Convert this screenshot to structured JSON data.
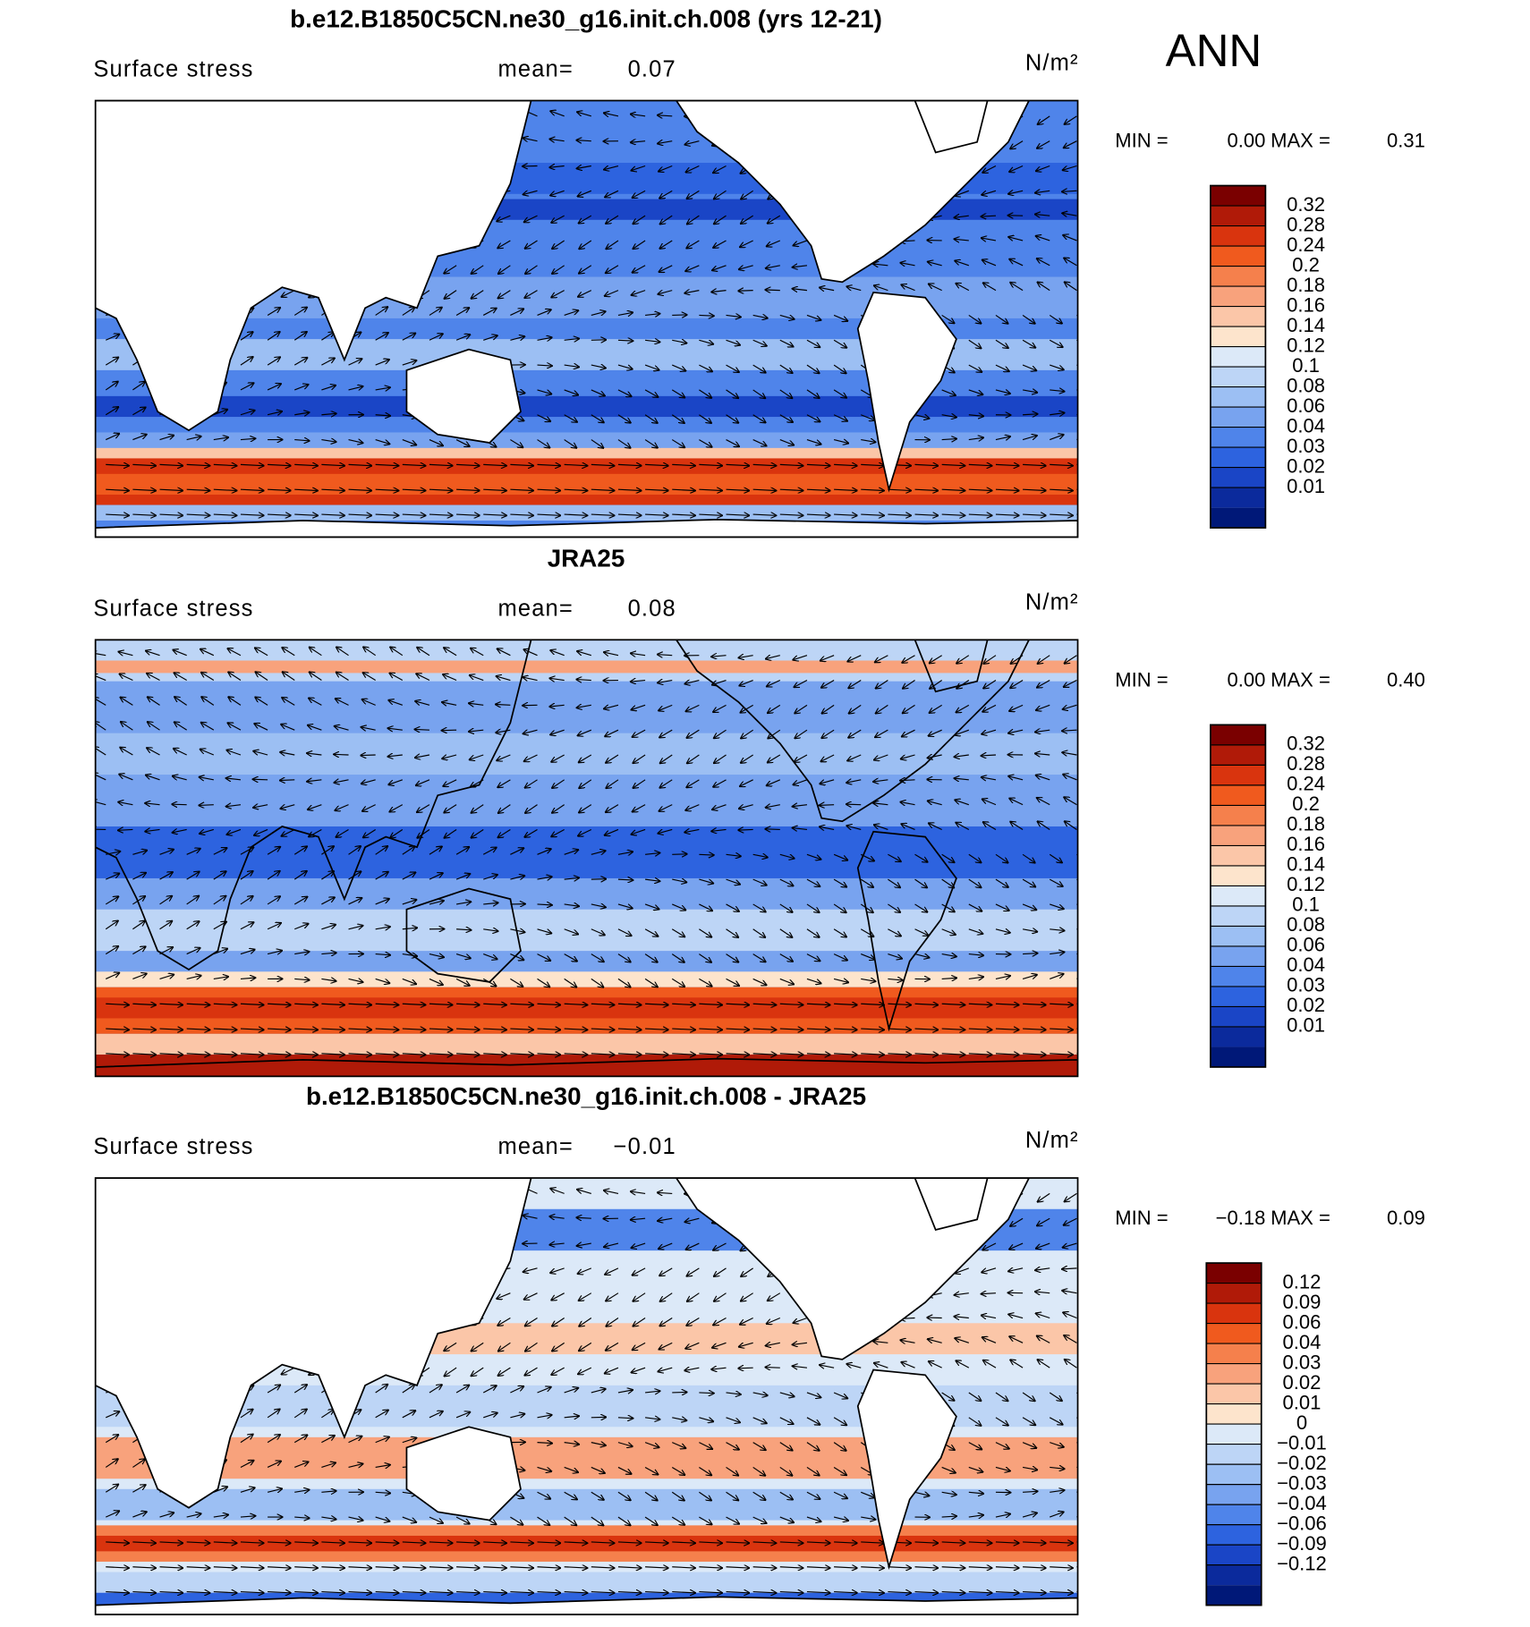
{
  "season": "ANN",
  "panels": [
    {
      "title": "b.e12.B1850C5CN.ne30_g16.init.ch.008 (yrs 12-21)",
      "field": "Surface stress",
      "mean_label": "mean=",
      "mean": "0.07",
      "units": "N/m²",
      "min_label": "MIN =",
      "min": "0.00",
      "max_label": "MAX =",
      "max": "0.31",
      "colorbar": {
        "levels": [
          0.32,
          0.28,
          0.24,
          0.2,
          0.18,
          0.16,
          0.14,
          0.12,
          0.1,
          0.08,
          0.06,
          0.04,
          0.03,
          0.02,
          0.01
        ],
        "colors": [
          "#7a0000",
          "#b01a08",
          "#d9340e",
          "#f05a1e",
          "#f5804c",
          "#f8a27c",
          "#fbc6a8",
          "#fde4cc",
          "#dce9f8",
          "#bdd5f6",
          "#9cbff3",
          "#78a3ef",
          "#4f84ea",
          "#2d63df",
          "#1a45c6",
          "#0b2a9c",
          "#001878"
        ]
      }
    },
    {
      "title": "JRA25",
      "field": "Surface stress",
      "mean_label": "mean=",
      "mean": "0.08",
      "units": "N/m²",
      "min_label": "MIN =",
      "min": "0.00",
      "max_label": "MAX =",
      "max": "0.40",
      "colorbar": {
        "levels": [
          0.32,
          0.28,
          0.24,
          0.2,
          0.18,
          0.16,
          0.14,
          0.12,
          0.1,
          0.08,
          0.06,
          0.04,
          0.03,
          0.02,
          0.01
        ],
        "colors": [
          "#7a0000",
          "#b01a08",
          "#d9340e",
          "#f05a1e",
          "#f5804c",
          "#f8a27c",
          "#fbc6a8",
          "#fde4cc",
          "#dce9f8",
          "#bdd5f6",
          "#9cbff3",
          "#78a3ef",
          "#4f84ea",
          "#2d63df",
          "#1a45c6",
          "#0b2a9c",
          "#001878"
        ]
      }
    },
    {
      "title": "b.e12.B1850C5CN.ne30_g16.init.ch.008 - JRA25",
      "field": "Surface stress",
      "mean_label": "mean=",
      "mean": "−0.01",
      "units": "N/m²",
      "min_label": "MIN =",
      "min": "−0.18",
      "max_label": "MAX =",
      "max": "0.09",
      "colorbar": {
        "levels": [
          0.12,
          0.09,
          0.06,
          0.04,
          0.03,
          0.02,
          0.01,
          0,
          {
            "value": -0.01,
            "label": "−0.01"
          },
          {
            "value": -0.02,
            "label": "−0.02"
          },
          {
            "value": -0.03,
            "label": "−0.03"
          },
          {
            "value": -0.04,
            "label": "−0.04"
          },
          {
            "value": -0.06,
            "label": "−0.06"
          },
          {
            "value": -0.09,
            "label": "−0.09"
          },
          {
            "value": -0.12,
            "label": "−0.12"
          }
        ],
        "colors": [
          "#7a0000",
          "#b01a08",
          "#d9340e",
          "#f05a1e",
          "#f5804c",
          "#f8a27c",
          "#fbc6a8",
          "#fde4cc",
          "#dce9f8",
          "#bdd5f6",
          "#9cbff3",
          "#78a3ef",
          "#4f84ea",
          "#2d63df",
          "#1a45c6",
          "#0b2a9c",
          "#001878"
        ]
      }
    }
  ]
}
